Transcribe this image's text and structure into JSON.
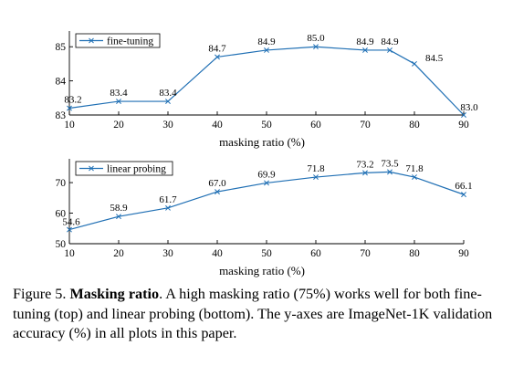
{
  "chart_data": [
    {
      "type": "line",
      "x": [
        10,
        20,
        30,
        40,
        50,
        60,
        70,
        75,
        80,
        90
      ],
      "series": [
        {
          "name": "fine-tuning",
          "values": [
            83.2,
            83.4,
            83.4,
            84.7,
            84.9,
            85.0,
            84.9,
            84.9,
            84.5,
            83.0
          ],
          "color": "#1f6fb4",
          "marker": "x"
        }
      ],
      "data_labels": [
        "83.2",
        "83.4",
        "83.4",
        "84.7",
        "84.9",
        "85.0",
        "84.9",
        "84.9",
        "84.5",
        "83.0"
      ],
      "xlabel": "masking ratio (%)",
      "ylabel": "",
      "xlim": [
        10,
        90
      ],
      "ylim": [
        83,
        85.3
      ],
      "xticks": [
        "10",
        "20",
        "30",
        "40",
        "50",
        "60",
        "70",
        "80",
        "90"
      ],
      "yticks": [
        "83",
        "84",
        "85"
      ],
      "grid": false,
      "legend_position": "top-left"
    },
    {
      "type": "line",
      "x": [
        10,
        20,
        30,
        40,
        50,
        60,
        70,
        75,
        80,
        90
      ],
      "series": [
        {
          "name": "linear probing",
          "values": [
            54.6,
            58.9,
            61.7,
            67.0,
            69.9,
            71.8,
            73.2,
            73.5,
            71.8,
            66.1
          ],
          "color": "#1f6fb4",
          "marker": "x"
        }
      ],
      "data_labels": [
        "54.6",
        "58.9",
        "61.7",
        "67.0",
        "69.9",
        "71.8",
        "73.2",
        "73.5",
        "71.8",
        "66.1"
      ],
      "xlabel": "masking ratio (%)",
      "ylabel": "",
      "xlim": [
        10,
        90
      ],
      "ylim": [
        50,
        76
      ],
      "xticks": [
        "10",
        "20",
        "30",
        "40",
        "50",
        "60",
        "70",
        "80",
        "90"
      ],
      "yticks": [
        "50",
        "60",
        "70"
      ],
      "grid": false,
      "legend_position": "top-left"
    }
  ],
  "caption": {
    "prefix": "Figure 5. ",
    "bold": "Masking ratio",
    "text": ". A high masking ratio (75%) works well for both fine-tuning (top) and linear probing (bottom). The y-axes are ImageNet-1K validation accuracy (%) in all plots in this paper."
  }
}
